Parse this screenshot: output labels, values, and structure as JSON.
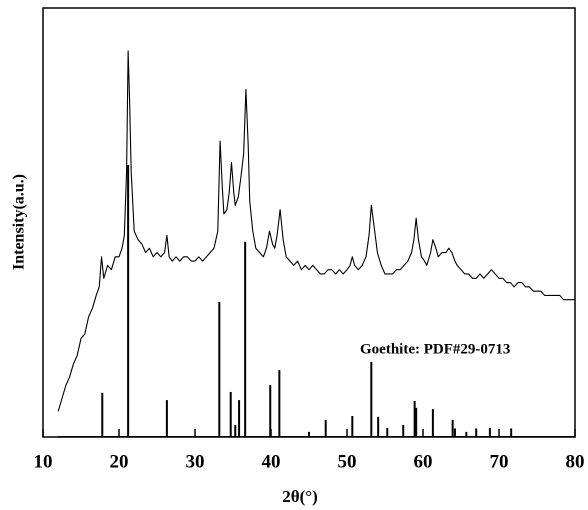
{
  "chart_data": {
    "type": "line",
    "xlabel": "2θ(°)",
    "ylabel": "Intensity(a.u.)",
    "annotation": "Goethite: PDF#29-0713",
    "xlim": [
      10,
      80
    ],
    "xticks": [
      10,
      20,
      30,
      40,
      50,
      60,
      70,
      80
    ],
    "ylim": [
      0,
      100
    ],
    "series": [
      {
        "type": "line",
        "color": "#000000",
        "x": [
          12,
          12.5,
          13,
          13.5,
          14,
          14.5,
          15,
          15.5,
          16,
          16.5,
          17,
          17.4,
          17.7,
          18,
          18.5,
          19,
          19.5,
          20,
          20.4,
          20.7,
          21,
          21.2,
          21.4,
          21.6,
          22,
          22.5,
          23,
          23.5,
          24,
          24.5,
          25,
          25.5,
          26,
          26.3,
          26.6,
          27,
          27.5,
          28,
          28.5,
          29,
          29.5,
          30,
          30.5,
          31,
          31.5,
          32,
          32.5,
          33,
          33.3,
          33.6,
          33.8,
          34.2,
          34.5,
          34.8,
          35.1,
          35.3,
          35.7,
          36,
          36.4,
          36.7,
          37,
          37.2,
          37.6,
          38,
          38.5,
          39,
          39.4,
          39.8,
          40.2,
          40.5,
          40.8,
          41.2,
          41.6,
          42,
          42.5,
          43,
          43.5,
          44,
          44.5,
          45,
          45.5,
          46,
          46.5,
          47,
          47.5,
          48,
          48.5,
          49,
          49.5,
          50,
          50.4,
          50.7,
          51,
          51.5,
          52,
          52.5,
          52.9,
          53.2,
          53.5,
          54,
          54.5,
          55,
          55.5,
          56,
          56.5,
          57,
          57.5,
          58,
          58.5,
          58.8,
          59.1,
          59.4,
          59.8,
          60.2,
          60.5,
          61,
          61.3,
          61.7,
          62,
          62.5,
          63,
          63.4,
          63.8,
          64.2,
          64.5,
          65,
          65.5,
          66,
          66.5,
          67,
          67.5,
          68,
          68.5,
          69,
          69.5,
          70,
          70.5,
          71,
          71.5,
          72,
          72.5,
          73,
          73.5,
          74,
          74.5,
          75,
          75.5,
          76,
          76.5,
          77,
          77.5,
          78,
          78.5,
          79,
          79.5,
          80
        ],
        "values": [
          6,
          9,
          12,
          14,
          17,
          19,
          23,
          24,
          28,
          30,
          33,
          35,
          42,
          37,
          40,
          39,
          42,
          42,
          44,
          47,
          62,
          90,
          78,
          62,
          48,
          46,
          45,
          43,
          44,
          42,
          43,
          42,
          43,
          47,
          42,
          41,
          42,
          41,
          42,
          42,
          41,
          41,
          42,
          41,
          42,
          43,
          44,
          48,
          69,
          58,
          52,
          53,
          57,
          64,
          57,
          54,
          56,
          60,
          66,
          81,
          68,
          55,
          48,
          44,
          43,
          42,
          44,
          48,
          45,
          44,
          47,
          53,
          46,
          42,
          41,
          40,
          41,
          39,
          40,
          39,
          40,
          39,
          38,
          38,
          39,
          39,
          38,
          39,
          38,
          39,
          40,
          42,
          40,
          39,
          40,
          42,
          47,
          54,
          50,
          43,
          40,
          38,
          38,
          38,
          39,
          39,
          40,
          41,
          43,
          46,
          51,
          46,
          42,
          41,
          40,
          43,
          46,
          44,
          42,
          43,
          43,
          44,
          43,
          41,
          40,
          39,
          38,
          38,
          37,
          37,
          38,
          37,
          38,
          39,
          38,
          37,
          37,
          36,
          36,
          35,
          36,
          36,
          35,
          35,
          34,
          34,
          34,
          33,
          33,
          33,
          33,
          33,
          32,
          32,
          32,
          32
        ]
      },
      {
        "type": "stem",
        "color": "#000000",
        "x": [
          17.8,
          21.2,
          26.3,
          33.2,
          34.7,
          35.3,
          35.8,
          36.6,
          39.9,
          41.1,
          45,
          47.2,
          50.7,
          53.2,
          54.1,
          55.3,
          57.4,
          58.9,
          59.1,
          61.3,
          63.9,
          64.2,
          65.7,
          67,
          68.8,
          71.6
        ],
        "values": [
          10.3,
          63.4,
          8.6,
          31.5,
          10.5,
          2.8,
          8.6,
          45.5,
          12.1,
          15.6,
          1.2,
          4,
          4.9,
          17.5,
          4.7,
          2.1,
          2.8,
          8.4,
          6.8,
          6.5,
          4,
          2,
          1.2,
          2,
          2.1,
          2
        ]
      }
    ]
  }
}
